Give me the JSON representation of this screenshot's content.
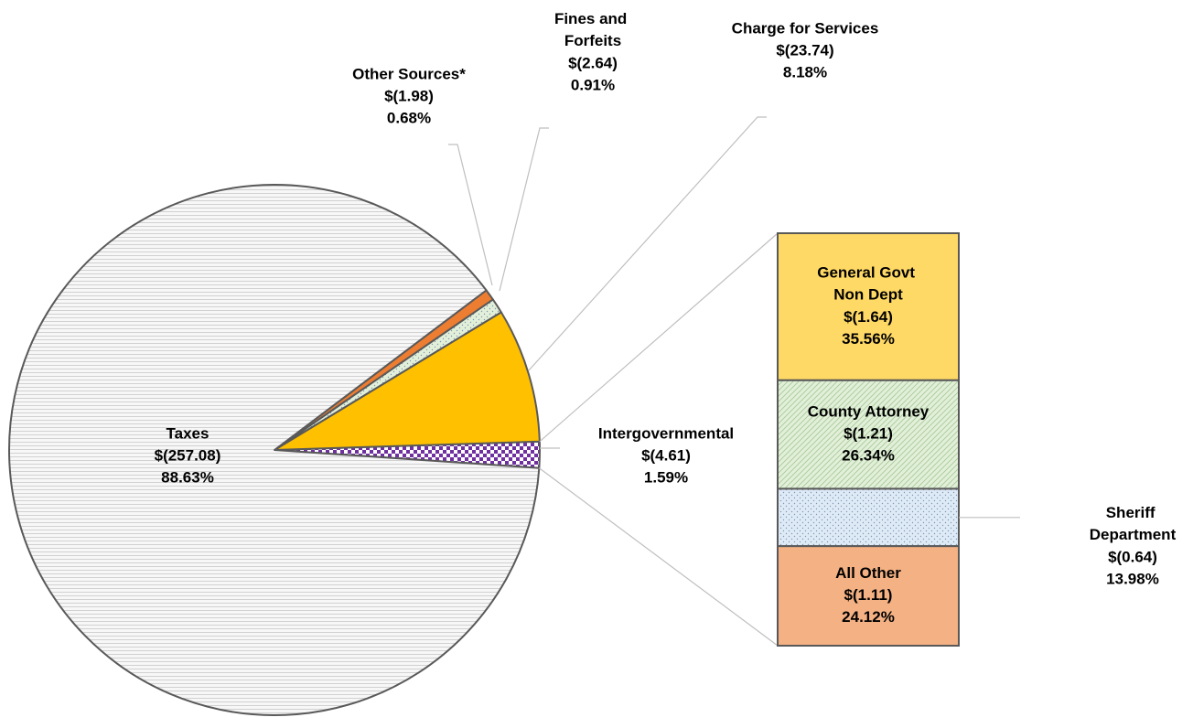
{
  "chart_data": [
    {
      "type": "pie",
      "categories": [
        "Intergovernmental",
        "Charge for Services",
        "Fines and Forfeits",
        "Other Sources*",
        "Taxes"
      ],
      "values": [
        4.61,
        23.74,
        2.64,
        1.98,
        257.08
      ],
      "value_labels": [
        "$(4.61)",
        "$(23.74)",
        "$(2.64)",
        "$(1.98)",
        "$(257.08)"
      ],
      "percents": [
        1.59,
        8.18,
        0.91,
        0.68,
        88.63
      ],
      "percent_labels": [
        "1.59%",
        "8.18%",
        "0.91%",
        "0.68%",
        "88.63%"
      ],
      "colors": [
        "#7030a0",
        "#ffc000",
        "#e2f0d9",
        "#ed7d31",
        "#f7f7f7"
      ],
      "patterns": [
        "checker",
        "solid",
        "dots",
        "solid",
        "horizontal"
      ]
    },
    {
      "type": "bar",
      "categories": [
        "General Govt Non Dept",
        "County Attorney",
        "Sheriff Department",
        "All Other"
      ],
      "values": [
        1.64,
        1.21,
        0.64,
        1.11
      ],
      "value_labels": [
        "$(1.64)",
        "$(1.21)",
        "$(0.64)",
        "$(1.11)"
      ],
      "percents": [
        35.56,
        26.34,
        13.98,
        24.12
      ],
      "percent_labels": [
        "35.56%",
        "26.34%",
        "13.98%",
        "24.12%"
      ],
      "colors": [
        "#ffd966",
        "#e2f0d9",
        "#deebf7",
        "#f4b183"
      ],
      "patterns": [
        "solid",
        "diagonal",
        "dots",
        "solid"
      ]
    }
  ]
}
